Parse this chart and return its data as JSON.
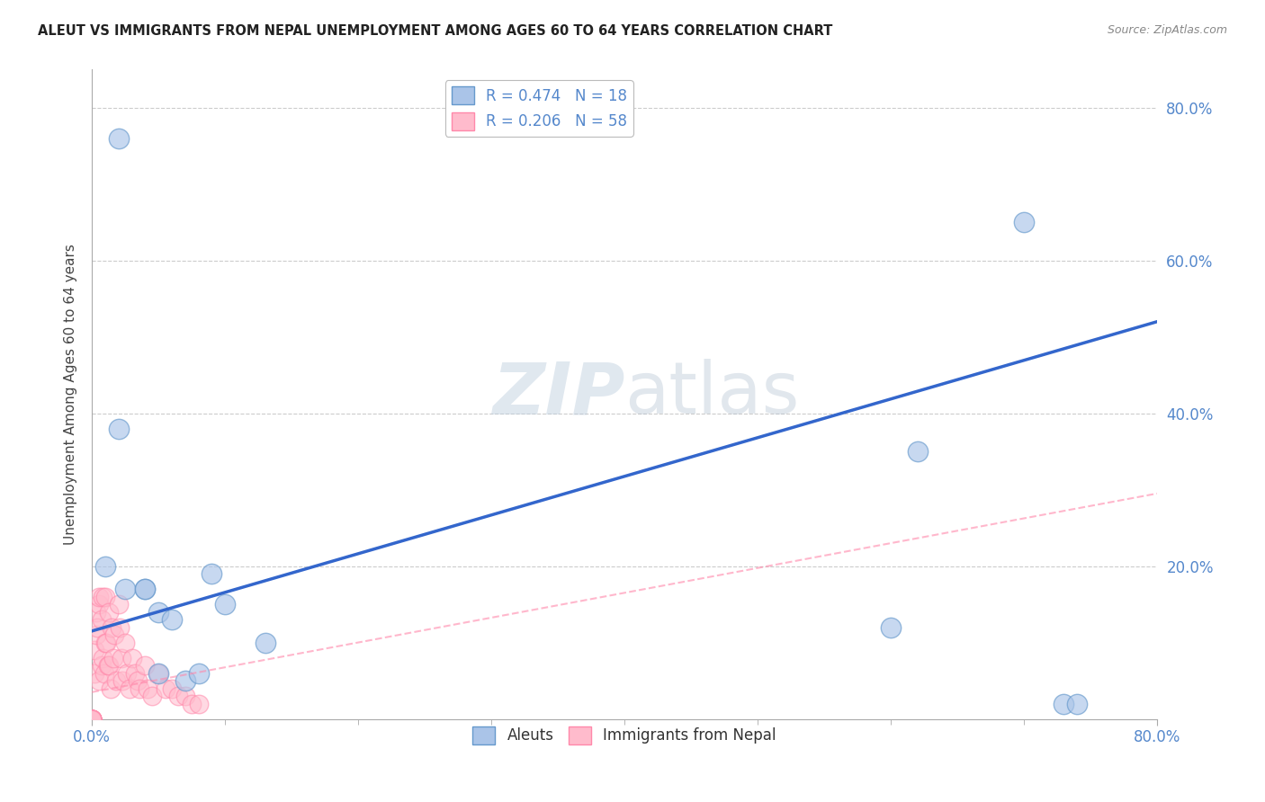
{
  "title": "ALEUT VS IMMIGRANTS FROM NEPAL UNEMPLOYMENT AMONG AGES 60 TO 64 YEARS CORRELATION CHART",
  "source": "Source: ZipAtlas.com",
  "ylabel": "Unemployment Among Ages 60 to 64 years",
  "xlim": [
    0.0,
    0.8
  ],
  "ylim": [
    0.0,
    0.85
  ],
  "yticks": [
    0.2,
    0.4,
    0.6,
    0.8
  ],
  "ytick_labels": [
    "20.0%",
    "40.0%",
    "60.0%",
    "80.0%"
  ],
  "xticks_minor": [
    0.1,
    0.2,
    0.3,
    0.4,
    0.5,
    0.6,
    0.7
  ],
  "watermark_zip": "ZIP",
  "watermark_atlas": "atlas",
  "aleut_color": "#AAC4E8",
  "aleut_edge": "#6699CC",
  "nepal_color": "#FFBBCC",
  "nepal_edge": "#FF88AA",
  "trend_aleut_color": "#3366CC",
  "trend_nepal_color": "#FF88AA",
  "aleut_x": [
    0.02,
    0.02,
    0.04,
    0.05,
    0.06,
    0.07,
    0.08,
    0.09,
    0.6,
    0.7
  ],
  "aleut_y": [
    0.76,
    0.38,
    0.17,
    0.14,
    0.13,
    0.05,
    0.06,
    0.19,
    0.12,
    0.65
  ],
  "aleut_x2": [
    0.01,
    0.025,
    0.04,
    0.05,
    0.1,
    0.13,
    0.62,
    0.73,
    0.74
  ],
  "aleut_y2": [
    0.2,
    0.17,
    0.17,
    0.06,
    0.15,
    0.1,
    0.35,
    0.02,
    0.02
  ],
  "nepal_x_dense": [
    0.0,
    0.0,
    0.0,
    0.0,
    0.0,
    0.0,
    0.0,
    0.0,
    0.0,
    0.0,
    0.002,
    0.002,
    0.003,
    0.003,
    0.004,
    0.005,
    0.005,
    0.005,
    0.007,
    0.007,
    0.008,
    0.008,
    0.009,
    0.01,
    0.01,
    0.011,
    0.012,
    0.013,
    0.013,
    0.014,
    0.015,
    0.016,
    0.017,
    0.018,
    0.02,
    0.021,
    0.022,
    0.023,
    0.025,
    0.026,
    0.028,
    0.03,
    0.032,
    0.034,
    0.036,
    0.04,
    0.042,
    0.045,
    0.05,
    0.055,
    0.06,
    0.065,
    0.07,
    0.075,
    0.08,
    0.0,
    0.0,
    0.0
  ],
  "nepal_y_dense": [
    0.0,
    0.0,
    0.0,
    0.0,
    0.0,
    0.0,
    0.0,
    0.0,
    0.0,
    0.0,
    0.06,
    0.09,
    0.11,
    0.14,
    0.12,
    0.15,
    0.16,
    0.05,
    0.13,
    0.07,
    0.16,
    0.08,
    0.06,
    0.16,
    0.1,
    0.1,
    0.07,
    0.14,
    0.07,
    0.04,
    0.12,
    0.08,
    0.11,
    0.05,
    0.15,
    0.12,
    0.08,
    0.05,
    0.1,
    0.06,
    0.04,
    0.08,
    0.06,
    0.05,
    0.04,
    0.07,
    0.04,
    0.03,
    0.06,
    0.04,
    0.04,
    0.03,
    0.03,
    0.02,
    0.02,
    0.0,
    0.0,
    0.0
  ],
  "aleut_trend_x": [
    0.0,
    0.8
  ],
  "aleut_trend_y": [
    0.115,
    0.52
  ],
  "nepal_trend_x": [
    0.0,
    0.8
  ],
  "nepal_trend_y": [
    0.035,
    0.295
  ],
  "background_color": "#FFFFFF",
  "grid_color": "#CCCCCC",
  "title_color": "#222222",
  "source_color": "#888888",
  "tick_label_color": "#5588CC",
  "ylabel_color": "#444444"
}
